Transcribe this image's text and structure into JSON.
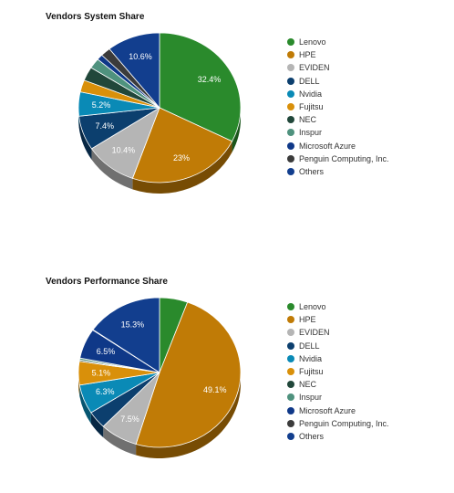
{
  "chart_data": [
    {
      "type": "pie",
      "title": "Vendors System Share",
      "categories": [
        "Lenovo",
        "HPE",
        "EVIDEN",
        "DELL",
        "Nvidia",
        "Fujitsu",
        "NEC",
        "Inspur",
        "Microsoft Azure",
        "Penguin Computing, Inc.",
        "Others"
      ],
      "values": [
        32.4,
        23.0,
        10.4,
        7.4,
        5.2,
        2.6,
        3.0,
        2.2,
        1.2,
        2.0,
        10.6
      ],
      "data_labels": [
        "32.4%",
        "23%",
        "10.4%",
        "7.4%",
        "5.2%",
        "",
        "",
        "",
        "",
        "",
        "10.6%"
      ],
      "legend_position": "right"
    },
    {
      "type": "pie",
      "title": "Vendors Performance Share",
      "categories": [
        "Lenovo",
        "HPE",
        "EVIDEN",
        "DELL",
        "Nvidia",
        "Fujitsu",
        "NEC",
        "Inspur",
        "Microsoft Azure",
        "Penguin Computing, Inc.",
        "Others"
      ],
      "values": [
        5.6,
        49.1,
        7.5,
        3.8,
        6.3,
        5.1,
        0.3,
        0.4,
        6.5,
        0.1,
        15.3
      ],
      "data_labels": [
        "",
        "49.1%",
        "7.5%",
        "",
        "6.3%",
        "5.1%",
        "",
        "",
        "6.5%",
        "",
        "15.3%"
      ],
      "legend_position": "right"
    }
  ],
  "colors": [
    "#2a8a2c",
    "#c07b06",
    "#b5b5b5",
    "#0c3f6e",
    "#0a8ab6",
    "#d9900a",
    "#21473a",
    "#4f927e",
    "#0f3888",
    "#3b3b3b",
    "#123e8e"
  ]
}
